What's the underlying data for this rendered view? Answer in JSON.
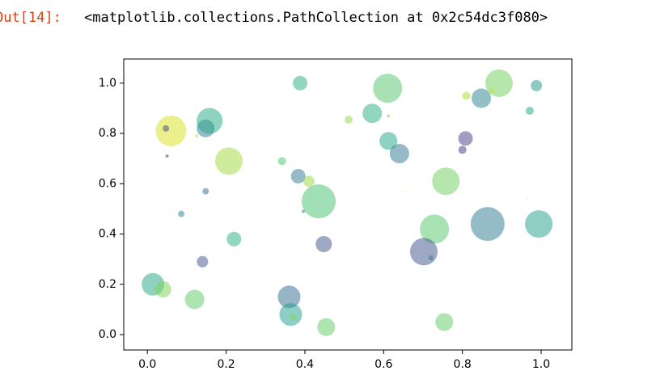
{
  "prompt": "Out[14]:",
  "output": "<matplotlib.collections.PathCollection at 0x2c54dc3f080>",
  "chart_data": {
    "type": "scatter",
    "x": [
      0.014,
      0.04,
      0.12,
      0.14,
      0.06,
      0.047,
      0.05,
      0.125,
      0.148,
      0.158,
      0.207,
      0.148,
      0.086,
      0.22,
      0.388,
      0.342,
      0.383,
      0.41,
      0.435,
      0.396,
      0.448,
      0.36,
      0.364,
      0.37,
      0.454,
      0.511,
      0.571,
      0.61,
      0.612,
      0.612,
      0.64,
      0.655,
      0.758,
      0.729,
      0.702,
      0.72,
      0.754,
      0.81,
      0.848,
      0.893,
      0.875,
      0.808,
      0.8,
      0.864,
      0.971,
      0.988,
      0.994,
      0.965
    ],
    "y": [
      0.2,
      0.18,
      0.14,
      0.29,
      0.81,
      0.82,
      0.71,
      0.79,
      0.82,
      0.85,
      0.69,
      0.57,
      0.48,
      0.38,
      1.0,
      0.69,
      0.63,
      0.61,
      0.53,
      0.49,
      0.36,
      0.15,
      0.08,
      0.07,
      0.03,
      0.855,
      0.88,
      0.98,
      0.87,
      0.77,
      0.72,
      0.57,
      0.61,
      0.42,
      0.33,
      0.305,
      0.05,
      0.95,
      0.94,
      1.0,
      0.97,
      0.78,
      0.735,
      0.44,
      0.89,
      0.99,
      0.44,
      0.54
    ],
    "sizes": [
      441,
      225,
      324,
      110,
      812,
      36,
      9,
      9,
      272,
      576,
      650,
      36,
      36,
      182,
      182,
      56,
      182,
      110,
      992,
      9,
      225,
      441,
      441,
      36,
      272,
      56,
      324,
      729,
      9,
      272,
      324,
      2,
      650,
      729,
      650,
      20,
      272,
      56,
      324,
      650,
      20,
      182,
      56,
      992,
      56,
      110,
      650,
      2
    ],
    "colors": [
      "#21a685",
      "#7ad151",
      "#5ec962",
      "#3b528b",
      "#d8e219",
      "#414487",
      "#482878",
      "#b5de2b",
      "#2a788e",
      "#22a884",
      "#a0da39",
      "#2c728e",
      "#26828e",
      "#29af7f",
      "#25ab82",
      "#4ac16d",
      "#2a788e",
      "#95d840",
      "#44bf70",
      "#31688e",
      "#3b528b",
      "#30688e",
      "#1f9e89",
      "#84d44b",
      "#5ec962",
      "#8fd744",
      "#26ad81",
      "#52c569",
      "#75d054",
      "#20a386",
      "#2c738e",
      "#bddf26",
      "#6ccd5a",
      "#54c568",
      "#3b528b",
      "#2a788e",
      "#5ec962",
      "#a8db34",
      "#277f8e",
      "#6ece58",
      "#c8e020",
      "#443983",
      "#46337e",
      "#2a788e",
      "#1fa088",
      "#21918c",
      "#1f9e89",
      "#e5e419"
    ],
    "alpha": 0.5,
    "xlim": [
      -0.06,
      1.078
    ],
    "ylim": [
      -0.061,
      1.096
    ],
    "xticks": [
      {
        "value": 0,
        "label": "0.0"
      },
      {
        "value": 0.2,
        "label": "0.2"
      },
      {
        "value": 0.4,
        "label": "0.4"
      },
      {
        "value": 0.6,
        "label": "0.6"
      },
      {
        "value": 0.8,
        "label": "0.8"
      },
      {
        "value": 1,
        "label": "1.0"
      }
    ],
    "yticks": [
      {
        "value": 0,
        "label": "0.0"
      },
      {
        "value": 0.2,
        "label": "0.2"
      },
      {
        "value": 0.4,
        "label": "0.4"
      },
      {
        "value": 0.6,
        "label": "0.6"
      },
      {
        "value": 0.8,
        "label": "0.8"
      },
      {
        "value": 1,
        "label": "1.0"
      }
    ],
    "grid": false
  }
}
